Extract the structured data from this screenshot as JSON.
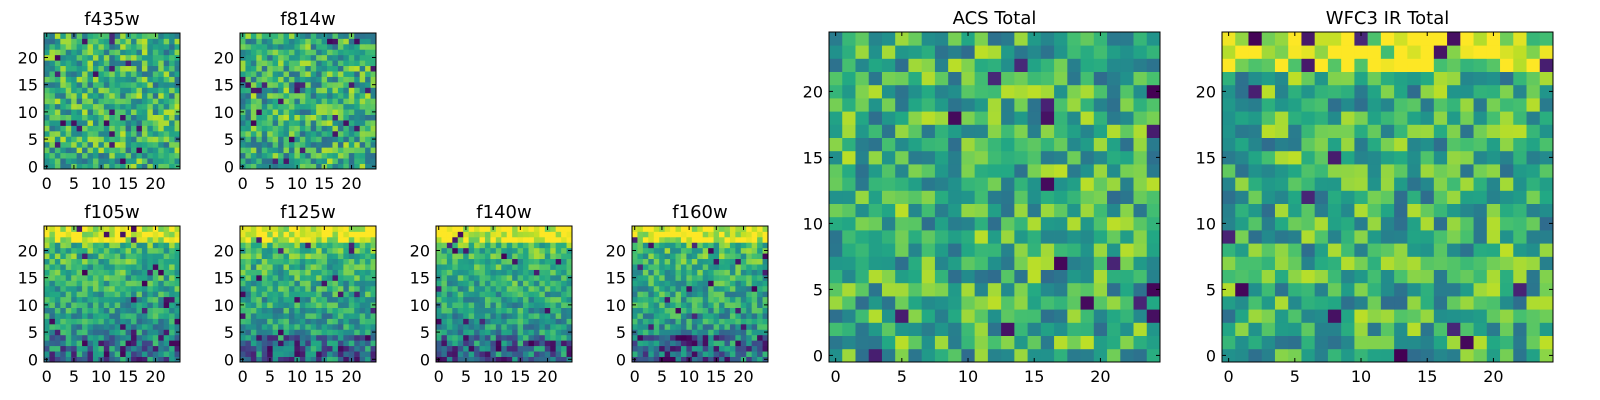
{
  "chart_data": [
    {
      "type": "heatmap",
      "title": "f435w",
      "xlabel": "",
      "ylabel": "",
      "xlim": [
        -0.5,
        24.5
      ],
      "ylim": [
        -0.5,
        24.5
      ],
      "grid_size": [
        25,
        25
      ],
      "x_ticks": [
        0,
        5,
        10,
        15,
        20
      ],
      "y_ticks": [
        0,
        5,
        10,
        15,
        20
      ],
      "colormap": "viridis",
      "pattern_seed": 11,
      "pattern_bias": "flat"
    },
    {
      "type": "heatmap",
      "title": "f814w",
      "xlabel": "",
      "ylabel": "",
      "xlim": [
        -0.5,
        24.5
      ],
      "ylim": [
        -0.5,
        24.5
      ],
      "grid_size": [
        25,
        25
      ],
      "x_ticks": [
        0,
        5,
        10,
        15,
        20
      ],
      "y_ticks": [
        0,
        5,
        10,
        15,
        20
      ],
      "colormap": "viridis",
      "pattern_seed": 23,
      "pattern_bias": "flat"
    },
    {
      "type": "heatmap",
      "title": "f105w",
      "xlabel": "",
      "ylabel": "",
      "xlim": [
        -0.5,
        24.5
      ],
      "ylim": [
        -0.5,
        24.5
      ],
      "grid_size": [
        25,
        25
      ],
      "x_ticks": [
        0,
        5,
        10,
        15,
        20
      ],
      "y_ticks": [
        0,
        5,
        10,
        15,
        20
      ],
      "colormap": "viridis",
      "pattern_seed": 37,
      "pattern_bias": "bright-top-dark-bottom"
    },
    {
      "type": "heatmap",
      "title": "f125w",
      "xlabel": "",
      "ylabel": "",
      "xlim": [
        -0.5,
        24.5
      ],
      "ylim": [
        -0.5,
        24.5
      ],
      "grid_size": [
        25,
        25
      ],
      "x_ticks": [
        0,
        5,
        10,
        15,
        20
      ],
      "y_ticks": [
        0,
        5,
        10,
        15,
        20
      ],
      "colormap": "viridis",
      "pattern_seed": 41,
      "pattern_bias": "bright-top-dark-bottom"
    },
    {
      "type": "heatmap",
      "title": "f140w",
      "xlabel": "",
      "ylabel": "",
      "xlim": [
        -0.5,
        24.5
      ],
      "ylim": [
        -0.5,
        24.5
      ],
      "grid_size": [
        25,
        25
      ],
      "x_ticks": [
        0,
        5,
        10,
        15,
        20
      ],
      "y_ticks": [
        0,
        5,
        10,
        15,
        20
      ],
      "colormap": "viridis",
      "pattern_seed": 53,
      "pattern_bias": "bright-top-dark-bottom"
    },
    {
      "type": "heatmap",
      "title": "f160w",
      "xlabel": "",
      "ylabel": "",
      "xlim": [
        -0.5,
        24.5
      ],
      "ylim": [
        -0.5,
        24.5
      ],
      "grid_size": [
        25,
        25
      ],
      "x_ticks": [
        0,
        5,
        10,
        15,
        20
      ],
      "y_ticks": [
        0,
        5,
        10,
        15,
        20
      ],
      "colormap": "viridis",
      "pattern_seed": 67,
      "pattern_bias": "bright-top-dark-bottom"
    },
    {
      "type": "heatmap",
      "title": "ACS Total",
      "xlabel": "",
      "ylabel": "",
      "xlim": [
        -0.5,
        24.5
      ],
      "ylim": [
        -0.5,
        24.5
      ],
      "grid_size": [
        25,
        25
      ],
      "x_ticks": [
        0,
        5,
        10,
        15,
        20
      ],
      "y_ticks": [
        0,
        5,
        10,
        15,
        20
      ],
      "colormap": "viridis",
      "pattern_seed": 79,
      "pattern_bias": "flat"
    },
    {
      "type": "heatmap",
      "title": "WFC3 IR Total",
      "xlabel": "",
      "ylabel": "",
      "xlim": [
        -0.5,
        24.5
      ],
      "ylim": [
        -0.5,
        24.5
      ],
      "grid_size": [
        25,
        25
      ],
      "x_ticks": [
        0,
        5,
        10,
        15,
        20
      ],
      "y_ticks": [
        0,
        5,
        10,
        15,
        20
      ],
      "colormap": "viridis",
      "pattern_seed": 97,
      "pattern_bias": "bright-top"
    }
  ]
}
